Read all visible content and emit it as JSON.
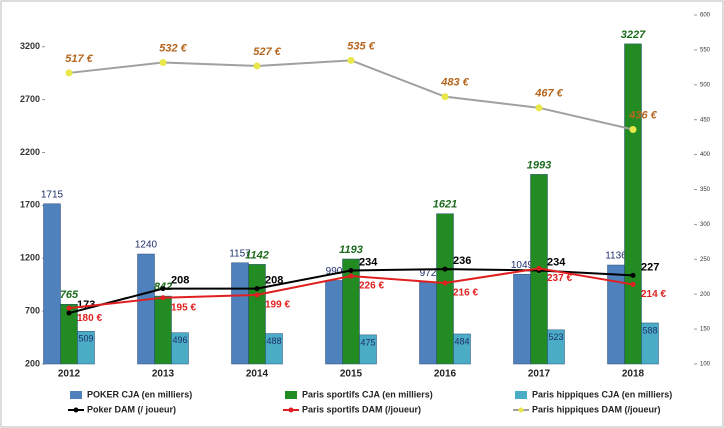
{
  "chart_data": {
    "type": "combo",
    "categories": [
      "2012",
      "2013",
      "2014",
      "2015",
      "2016",
      "2017",
      "2018"
    ],
    "ylim": [
      200,
      3500
    ],
    "yticks": [
      200,
      700,
      1200,
      1700,
      2200,
      2700,
      3200
    ],
    "y2lim": [
      100,
      600
    ],
    "y2ticks": [
      100,
      150,
      200,
      250,
      300,
      350,
      400,
      450,
      500,
      550,
      600
    ],
    "series": [
      {
        "name": "POKER CJA (en milliers)",
        "type": "bar",
        "color": "#4f81bd",
        "values": [
          1715,
          1240,
          1157,
          990,
          972,
          1049,
          1136
        ]
      },
      {
        "name": "Paris sportifs CJA  (en milliers)",
        "type": "bar",
        "color": "#228b22",
        "values": [
          765,
          842,
          1142,
          1193,
          1621,
          1993,
          3227
        ]
      },
      {
        "name": "Paris hippiques CJA  (en milliers)",
        "type": "bar",
        "color": "#4bacc6",
        "values": [
          509,
          496,
          488,
          475,
          484,
          523,
          588
        ]
      },
      {
        "name": "Poker DAM (/ joueur)",
        "type": "line",
        "axis": "y2",
        "color": "#000000",
        "values": [
          173,
          208,
          208,
          234,
          236,
          234,
          227
        ]
      },
      {
        "name": "Paris sportifs DAM (/joueur)",
        "type": "line",
        "axis": "y2",
        "color": "#e02020",
        "values": [
          180,
          195,
          199,
          226,
          216,
          237,
          214
        ],
        "value_labels": [
          "180 €",
          "195 €",
          "199 €",
          "226 €",
          "216 €",
          "237 €",
          "214 €"
        ]
      },
      {
        "name": "Paris hippiques DAM (/joueur)",
        "type": "line",
        "axis": "y2",
        "color": "#a0a0a0",
        "marker_color": "#e8e84a",
        "values": [
          517,
          532,
          527,
          535,
          483,
          467,
          436
        ],
        "value_labels": [
          "517 €",
          "532 €",
          "527 €",
          "535 €",
          "483 €",
          "467 €",
          "436 €"
        ]
      }
    ]
  }
}
